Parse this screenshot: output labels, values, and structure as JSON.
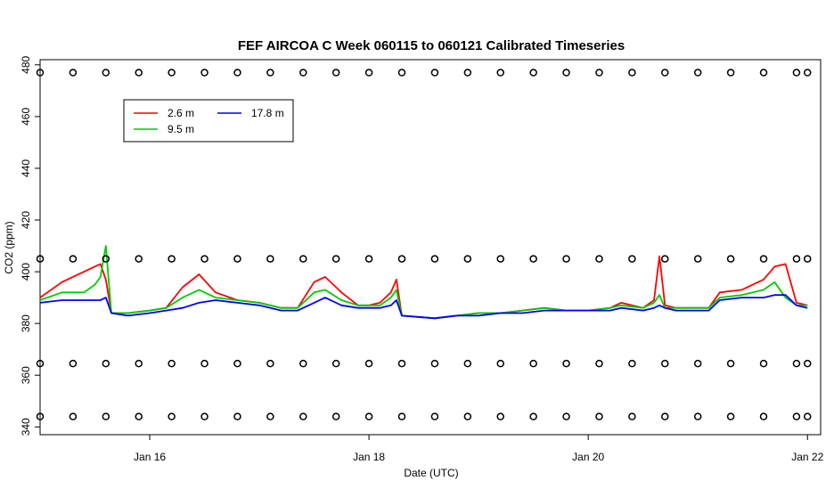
{
  "chart_data": {
    "type": "line",
    "title": "FEF AIRCOA C  Week 060115 to 060121  Calibrated Timeseries",
    "xlabel": "Date (UTC)",
    "ylabel": "CO2 (ppm)",
    "xlim": [
      15.0,
      22.12
    ],
    "ylim": [
      337,
      482
    ],
    "x_ticks": [
      {
        "value": 16,
        "label": "Jan 16"
      },
      {
        "value": 18,
        "label": "Jan 18"
      },
      {
        "value": 20,
        "label": "Jan 20"
      },
      {
        "value": 22,
        "label": "Jan 22"
      }
    ],
    "y_ticks": [
      {
        "value": 340,
        "label": "340"
      },
      {
        "value": 360,
        "label": "360"
      },
      {
        "value": 380,
        "label": "380"
      },
      {
        "value": 400,
        "label": "400"
      },
      {
        "value": 420,
        "label": "420"
      },
      {
        "value": 440,
        "label": "440"
      },
      {
        "value": 460,
        "label": "460"
      },
      {
        "value": 480,
        "label": "480"
      }
    ],
    "legend_position": "top-left",
    "series": [
      {
        "name": "2.6 m",
        "color": "#ff0000",
        "x": [
          15.0,
          15.2,
          15.4,
          15.55,
          15.6,
          15.65,
          15.8,
          16.0,
          16.15,
          16.3,
          16.45,
          16.6,
          16.8,
          17.0,
          17.2,
          17.35,
          17.5,
          17.6,
          17.75,
          17.9,
          18.0,
          18.1,
          18.2,
          18.25,
          18.3,
          18.6,
          18.8,
          19.0,
          19.2,
          19.4,
          19.6,
          19.8,
          20.0,
          20.2,
          20.3,
          20.5,
          20.6,
          20.65,
          20.7,
          20.8,
          21.0,
          21.1,
          21.2,
          21.4,
          21.6,
          21.7,
          21.8,
          21.9,
          22.0
        ],
        "y": [
          390,
          396,
          400,
          403,
          397,
          384,
          384,
          385,
          386,
          394,
          399,
          392,
          389,
          388,
          386,
          386,
          396,
          398,
          392,
          387,
          387,
          388,
          392,
          397,
          383,
          382,
          383,
          384,
          384,
          385,
          386,
          385,
          385,
          386,
          388,
          386,
          389,
          406,
          387,
          386,
          386,
          386,
          392,
          393,
          397,
          402,
          403,
          388,
          387
        ]
      },
      {
        "name": "9.5 m",
        "color": "#00cc00",
        "x": [
          15.0,
          15.2,
          15.4,
          15.5,
          15.55,
          15.6,
          15.65,
          15.8,
          16.0,
          16.15,
          16.3,
          16.45,
          16.6,
          16.8,
          17.0,
          17.2,
          17.35,
          17.5,
          17.6,
          17.75,
          17.9,
          18.0,
          18.1,
          18.2,
          18.25,
          18.3,
          18.6,
          18.8,
          19.0,
          19.2,
          19.4,
          19.6,
          19.8,
          20.0,
          20.2,
          20.3,
          20.5,
          20.6,
          20.65,
          20.7,
          20.8,
          21.0,
          21.1,
          21.2,
          21.4,
          21.6,
          21.7,
          21.8,
          21.9,
          22.0
        ],
        "y": [
          389,
          392,
          392,
          395,
          398,
          410,
          384,
          384,
          385,
          386,
          390,
          393,
          390,
          389,
          388,
          386,
          386,
          392,
          393,
          389,
          387,
          387,
          387,
          390,
          393,
          383,
          382,
          383,
          384,
          384,
          385,
          386,
          385,
          385,
          386,
          387,
          386,
          388,
          391,
          386,
          386,
          386,
          386,
          390,
          391,
          393,
          396,
          390,
          387,
          387
        ]
      },
      {
        "name": "17.8 m",
        "color": "#0000ff",
        "x": [
          15.0,
          15.2,
          15.4,
          15.55,
          15.6,
          15.65,
          15.8,
          16.0,
          16.15,
          16.3,
          16.45,
          16.6,
          16.8,
          17.0,
          17.2,
          17.35,
          17.5,
          17.6,
          17.75,
          17.9,
          18.0,
          18.1,
          18.2,
          18.25,
          18.3,
          18.6,
          18.8,
          19.0,
          19.2,
          19.4,
          19.6,
          19.8,
          20.0,
          20.2,
          20.3,
          20.5,
          20.6,
          20.65,
          20.7,
          20.8,
          21.0,
          21.1,
          21.2,
          21.4,
          21.6,
          21.7,
          21.8,
          21.9,
          22.0
        ],
        "y": [
          388,
          389,
          389,
          389,
          390,
          384,
          383,
          384,
          385,
          386,
          388,
          389,
          388,
          387,
          385,
          385,
          388,
          390,
          387,
          386,
          386,
          386,
          387,
          389,
          383,
          382,
          383,
          383,
          384,
          384,
          385,
          385,
          385,
          385,
          386,
          385,
          386,
          387,
          386,
          385,
          385,
          385,
          389,
          390,
          390,
          391,
          391,
          387,
          386
        ]
      },
      {
        "name": "",
        "color": "#000000",
        "marker": "circle",
        "x": [
          15.0,
          15.3,
          15.6,
          15.9,
          16.2,
          16.5,
          16.8,
          17.1,
          17.4,
          17.7,
          18.0,
          18.3,
          18.6,
          18.9,
          19.2,
          19.5,
          19.8,
          20.1,
          20.4,
          20.7,
          21.0,
          21.3,
          21.6,
          21.9,
          22.0
        ],
        "y": [
          477,
          477,
          477,
          477,
          477,
          477,
          477,
          477,
          477,
          477,
          477,
          477,
          477,
          477,
          477,
          477,
          477,
          477,
          477,
          477,
          477,
          477,
          477,
          477,
          477
        ]
      },
      {
        "name": "",
        "color": "#000000",
        "marker": "circle",
        "x": [
          15.0,
          15.3,
          15.6,
          15.9,
          16.2,
          16.5,
          16.8,
          17.1,
          17.4,
          17.7,
          18.0,
          18.3,
          18.6,
          18.9,
          19.2,
          19.5,
          19.8,
          20.1,
          20.4,
          20.7,
          21.0,
          21.3,
          21.6,
          21.9,
          22.0
        ],
        "y": [
          405,
          405,
          405,
          405,
          405,
          405,
          405,
          405,
          405,
          405,
          405,
          405,
          405,
          405,
          405,
          405,
          405,
          405,
          405,
          405,
          405,
          405,
          405,
          405,
          405
        ]
      },
      {
        "name": "",
        "color": "#000000",
        "marker": "circle",
        "x": [
          15.0,
          15.3,
          15.6,
          15.9,
          16.2,
          16.5,
          16.8,
          17.1,
          17.4,
          17.7,
          18.0,
          18.3,
          18.6,
          18.9,
          19.2,
          19.5,
          19.8,
          20.1,
          20.4,
          20.7,
          21.0,
          21.3,
          21.6,
          21.9,
          22.0
        ],
        "y": [
          364.5,
          364.5,
          364.5,
          364.5,
          364.5,
          364.5,
          364.5,
          364.5,
          364.5,
          364.5,
          364.5,
          364.5,
          364.5,
          364.5,
          364.5,
          364.5,
          364.5,
          364.5,
          364.5,
          364.5,
          364.5,
          364.5,
          364.5,
          364.5,
          364.5
        ]
      },
      {
        "name": "",
        "color": "#000000",
        "marker": "circle",
        "x": [
          15.0,
          15.3,
          15.6,
          15.9,
          16.2,
          16.5,
          16.8,
          17.1,
          17.4,
          17.7,
          18.0,
          18.3,
          18.6,
          18.9,
          19.2,
          19.5,
          19.8,
          20.1,
          20.4,
          20.7,
          21.0,
          21.3,
          21.6,
          21.9,
          22.0
        ],
        "y": [
          344,
          344,
          344,
          344,
          344,
          344,
          344,
          344,
          344,
          344,
          344,
          344,
          344,
          344,
          344,
          344,
          344,
          344,
          344,
          344,
          344,
          344,
          344,
          344,
          344
        ]
      }
    ]
  }
}
